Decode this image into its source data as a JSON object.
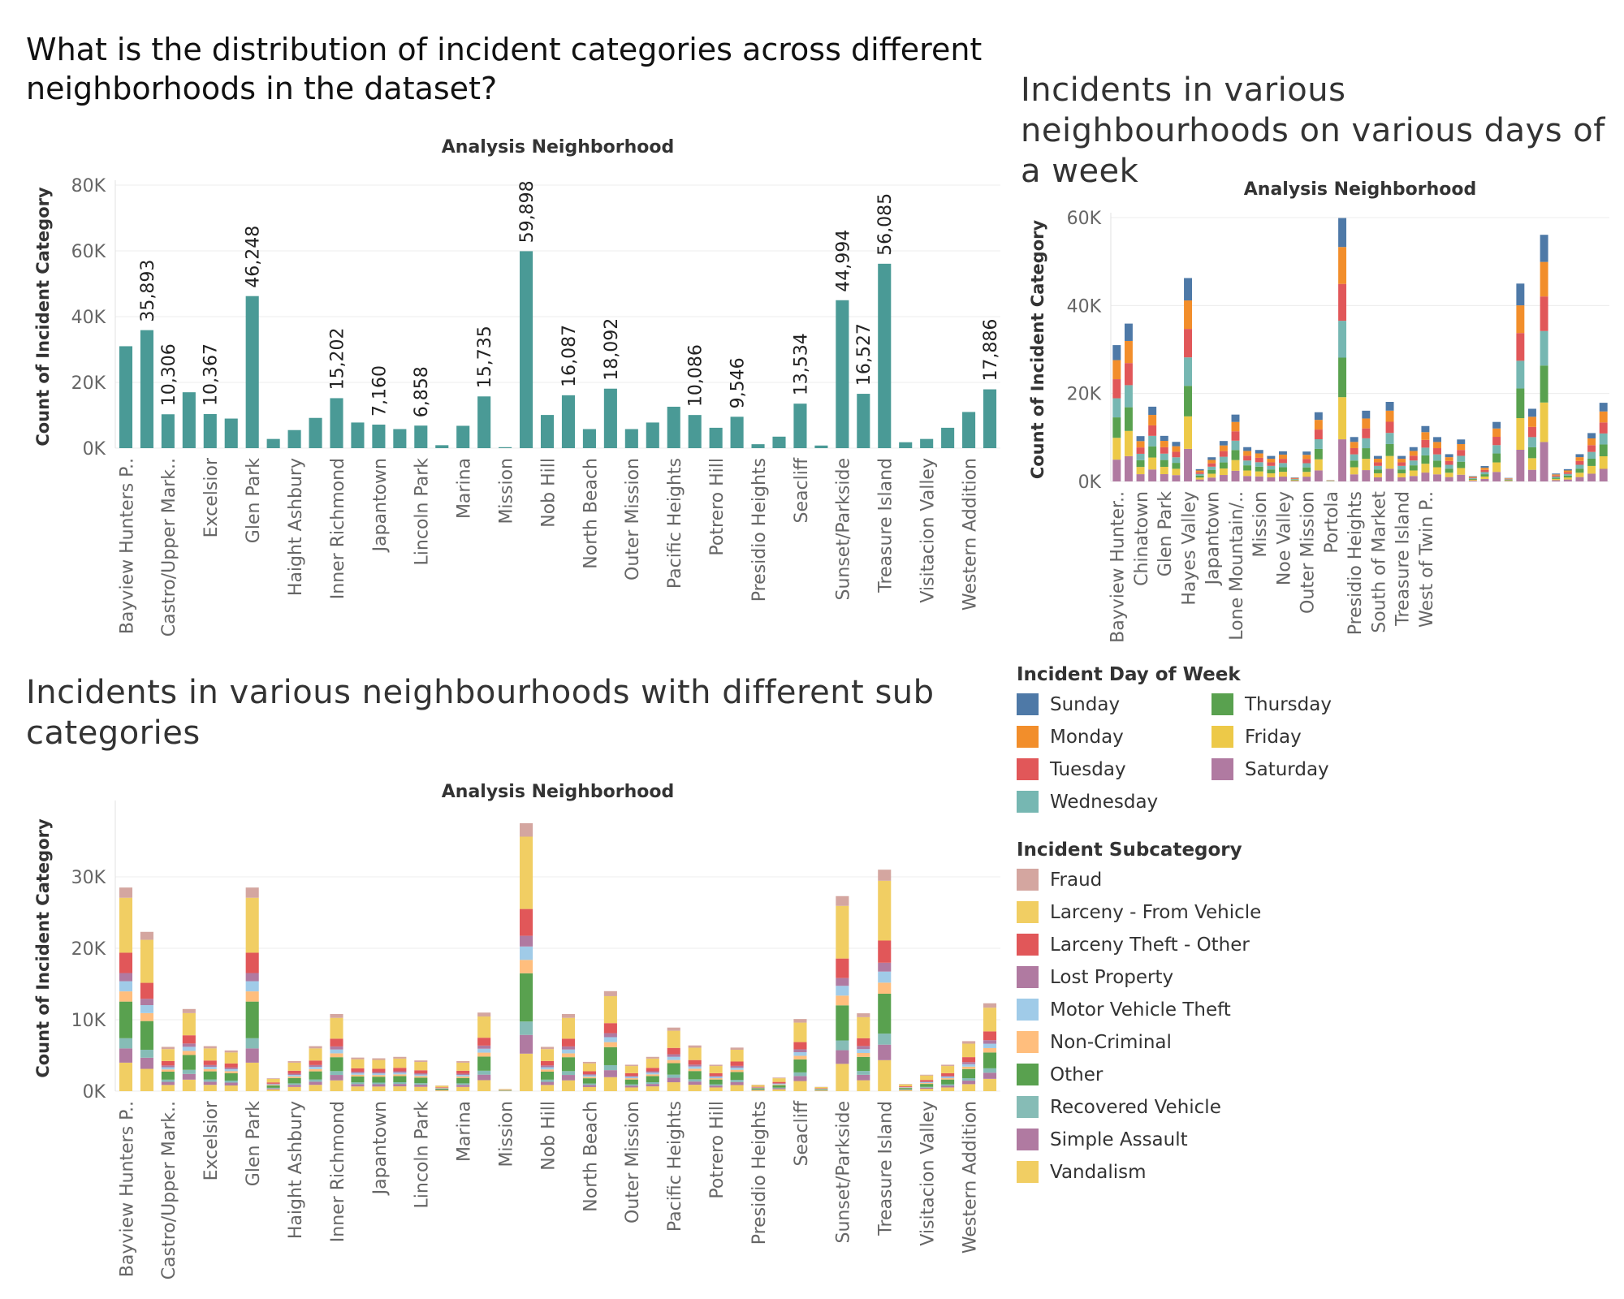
{
  "titles": {
    "main": "What is the distribution of incident categories across different neighborhoods in the dataset?",
    "week": "Incidents in various neighbourhoods on various days of a week",
    "sub": "Incidents in various neighbourhoods with different sub categories"
  },
  "chart_data": [
    {
      "id": "main",
      "type": "bar",
      "title": "Analysis Neighborhood",
      "ylabel": "Count of Incident Category",
      "ylim": [
        0,
        80000
      ],
      "yticks": [
        0,
        20000,
        40000,
        60000,
        80000
      ],
      "ytick_labels": [
        "0K",
        "20K",
        "40K",
        "60K",
        "80K"
      ],
      "color": "#4a9a96",
      "tick_labels": [
        "Bayview Hunters P..",
        "Castro/Upper Mark..",
        "Excelsior",
        "Glen Park",
        "Haight Ashbury",
        "Inner Richmond",
        "Japantown",
        "Lincoln Park",
        "Marina",
        "Mission",
        "Nob Hill",
        "North Beach",
        "Outer Mission",
        "Pacific Heights",
        "Potrero Hill",
        "Presidio Heights",
        "Seacliff",
        "Sunset/Parkside",
        "Treasure Island",
        "Visitacion Valley",
        "Western Addition"
      ],
      "values": [
        31000,
        35893,
        10306,
        17000,
        10367,
        9000,
        46248,
        2800,
        5500,
        9200,
        15202,
        7800,
        7160,
        5800,
        6858,
        900,
        6800,
        15735,
        300,
        59898,
        10100,
        16087,
        5800,
        18092,
        5800,
        7800,
        12600,
        10086,
        6200,
        9546,
        1200,
        3500,
        13534,
        800,
        44994,
        16527,
        56085,
        1800,
        2800,
        6200,
        11000,
        17886
      ],
      "value_labels": [
        "",
        "35,893",
        "10,306",
        "",
        "10,367",
        "",
        "46,248",
        "",
        "",
        "",
        "15,202",
        "",
        "7,160",
        "",
        "6,858",
        "",
        "",
        "15,735",
        "",
        "59,898",
        "",
        "16,087",
        "",
        "18,092",
        "",
        "",
        "",
        "10,086",
        "",
        "9,546",
        "",
        "",
        "13,534",
        "",
        "44,994",
        "16,527",
        "56,085",
        "",
        "",
        "",
        "",
        "17,886"
      ]
    },
    {
      "id": "week",
      "type": "bar",
      "stacked": true,
      "title": "Analysis Neighborhood",
      "ylabel": "Count of Incident Category",
      "ylim": [
        0,
        60000
      ],
      "yticks": [
        0,
        20000,
        40000,
        60000
      ],
      "ytick_labels": [
        "0K",
        "20K",
        "40K",
        "60K"
      ],
      "tick_labels": [
        "Bayview Hunter..",
        "Chinatown",
        "Glen Park",
        "Hayes Valley",
        "Japantown",
        "Lone Mountain/..",
        "Mission",
        "Noe Valley",
        "Outer Mission",
        "Portola",
        "Presidio Heights",
        "South of Market",
        "Treasure Island",
        "West of Twin P.."
      ],
      "totals": [
        31000,
        35893,
        10306,
        17000,
        10367,
        9000,
        46248,
        2800,
        5500,
        9200,
        15202,
        7800,
        7160,
        5800,
        6858,
        900,
        6800,
        15735,
        300,
        59898,
        10100,
        16087,
        5800,
        18092,
        5800,
        7800,
        12600,
        10086,
        6200,
        9546,
        1200,
        3500,
        13534,
        800,
        44994,
        16527,
        56085,
        1800,
        2800,
        6200,
        11000,
        17886
      ],
      "series": [
        {
          "name": "Saturday",
          "color": "#b07aa1",
          "share": 0.16
        },
        {
          "name": "Friday",
          "color": "#edc948",
          "share": 0.16
        },
        {
          "name": "Thursday",
          "color": "#59a14f",
          "share": 0.15
        },
        {
          "name": "Wednesday",
          "color": "#76b7b2",
          "share": 0.14
        },
        {
          "name": "Tuesday",
          "color": "#e15759",
          "share": 0.14
        },
        {
          "name": "Monday",
          "color": "#f28e2b",
          "share": 0.14
        },
        {
          "name": "Sunday",
          "color": "#4e79a7",
          "share": 0.11
        }
      ]
    },
    {
      "id": "sub",
      "type": "bar",
      "stacked": true,
      "title": "Analysis Neighborhood",
      "ylabel": "Count of Incident Category",
      "ylim": [
        0,
        40000
      ],
      "yticks": [
        0,
        10000,
        20000,
        30000
      ],
      "ytick_labels": [
        "0K",
        "10K",
        "20K",
        "30K"
      ],
      "tick_labels": [
        "Bayview Hunters P..",
        "Castro/Upper Mark..",
        "Excelsior",
        "Glen Park",
        "Haight Ashbury",
        "Inner Richmond",
        "Japantown",
        "Lincoln Park",
        "Marina",
        "Mission",
        "Nob Hill",
        "North Beach",
        "Outer Mission",
        "Pacific Heights",
        "Potrero Hill",
        "Presidio Heights",
        "Seacliff",
        "Sunset/Parkside",
        "Treasure Island",
        "Visitacion Valley",
        "Western Addition"
      ],
      "totals": [
        28500,
        22300,
        6200,
        11500,
        6300,
        5700,
        28500,
        1800,
        4200,
        6300,
        10800,
        4700,
        4600,
        4800,
        4300,
        800,
        4200,
        11000,
        300,
        37500,
        6200,
        10800,
        4100,
        14000,
        3700,
        4800,
        8900,
        6400,
        3700,
        6100,
        900,
        1900,
        10100,
        600,
        27300,
        10900,
        31000,
        1000,
        2300,
        3700,
        7000,
        12300
      ],
      "series": [
        {
          "name": "Vandalism",
          "color": "#f1ce63",
          "share": 0.14
        },
        {
          "name": "Simple Assault",
          "color": "#b07aa1",
          "share": 0.07
        },
        {
          "name": "Recovered Vehicle",
          "color": "#86bcb6",
          "share": 0.05
        },
        {
          "name": "Other",
          "color": "#59a14f",
          "share": 0.18
        },
        {
          "name": "Non-Criminal",
          "color": "#ffbe7d",
          "share": 0.05
        },
        {
          "name": "Motor Vehicle Theft",
          "color": "#a0cbe8",
          "share": 0.05
        },
        {
          "name": "Lost Property",
          "color": "#b07aa1",
          "share": 0.04
        },
        {
          "name": "Larceny Theft - Other",
          "color": "#e15759",
          "share": 0.1
        },
        {
          "name": "Larceny - From Vehicle",
          "color": "#f1ce63",
          "share": 0.27
        },
        {
          "name": "Fraud",
          "color": "#d4a6a0",
          "share": 0.05
        }
      ]
    }
  ],
  "legend_day": {
    "title": "Incident Day of Week",
    "items": [
      {
        "label": "Sunday",
        "color": "#4e79a7"
      },
      {
        "label": "Monday",
        "color": "#f28e2b"
      },
      {
        "label": "Tuesday",
        "color": "#e15759"
      },
      {
        "label": "Wednesday",
        "color": "#76b7b2"
      },
      {
        "label": "Thursday",
        "color": "#59a14f"
      },
      {
        "label": "Friday",
        "color": "#edc948"
      },
      {
        "label": "Saturday",
        "color": "#b07aa1"
      }
    ]
  },
  "legend_sub": {
    "title": "Incident Subcategory",
    "items": [
      {
        "label": "Fraud",
        "color": "#d4a6a0"
      },
      {
        "label": "Larceny - From Vehicle",
        "color": "#f1ce63"
      },
      {
        "label": "Larceny Theft - Other",
        "color": "#e15759"
      },
      {
        "label": "Lost Property",
        "color": "#b07aa1"
      },
      {
        "label": "Motor Vehicle Theft",
        "color": "#a0cbe8"
      },
      {
        "label": "Non-Criminal",
        "color": "#ffbe7d"
      },
      {
        "label": "Other",
        "color": "#59a14f"
      },
      {
        "label": "Recovered Vehicle",
        "color": "#86bcb6"
      },
      {
        "label": "Simple Assault",
        "color": "#b07aa1"
      },
      {
        "label": "Vandalism",
        "color": "#f1ce63"
      }
    ]
  }
}
